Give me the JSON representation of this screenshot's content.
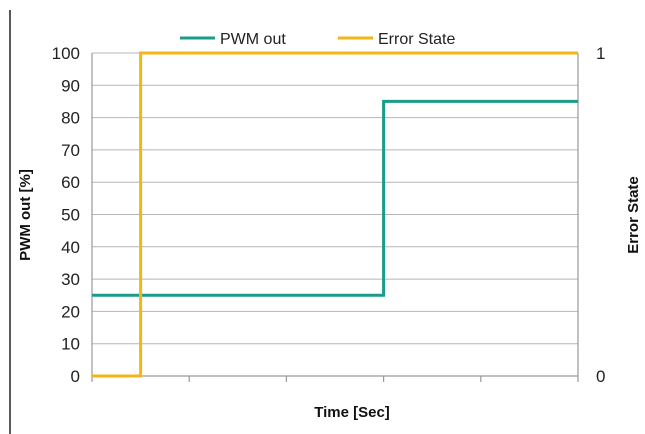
{
  "chart_data": {
    "type": "line",
    "xlabel": "Time [Sec]",
    "ylabel": "PWM out [%]",
    "y2label": "Error State",
    "ylim": [
      0,
      100
    ],
    "y2lim": [
      0,
      1
    ],
    "yticks": [
      "0",
      "10",
      "20",
      "30",
      "40",
      "50",
      "60",
      "70",
      "80",
      "90",
      "100"
    ],
    "y2ticks": [
      "0",
      "1"
    ],
    "xlim": [
      0,
      10
    ],
    "x_tick_positions": [
      0,
      2,
      4,
      6,
      8,
      10
    ],
    "grid": "horizontal",
    "legend": "top",
    "series": [
      {
        "name": "PWM out",
        "axis": "left",
        "color": "#1a9c8a",
        "x": [
          0,
          6,
          6,
          10
        ],
        "y": [
          25,
          25,
          85,
          85
        ]
      },
      {
        "name": "Error State",
        "axis": "right",
        "color": "#f2b619",
        "x": [
          0,
          1,
          1,
          10
        ],
        "y": [
          0,
          0,
          1,
          1
        ]
      }
    ]
  }
}
